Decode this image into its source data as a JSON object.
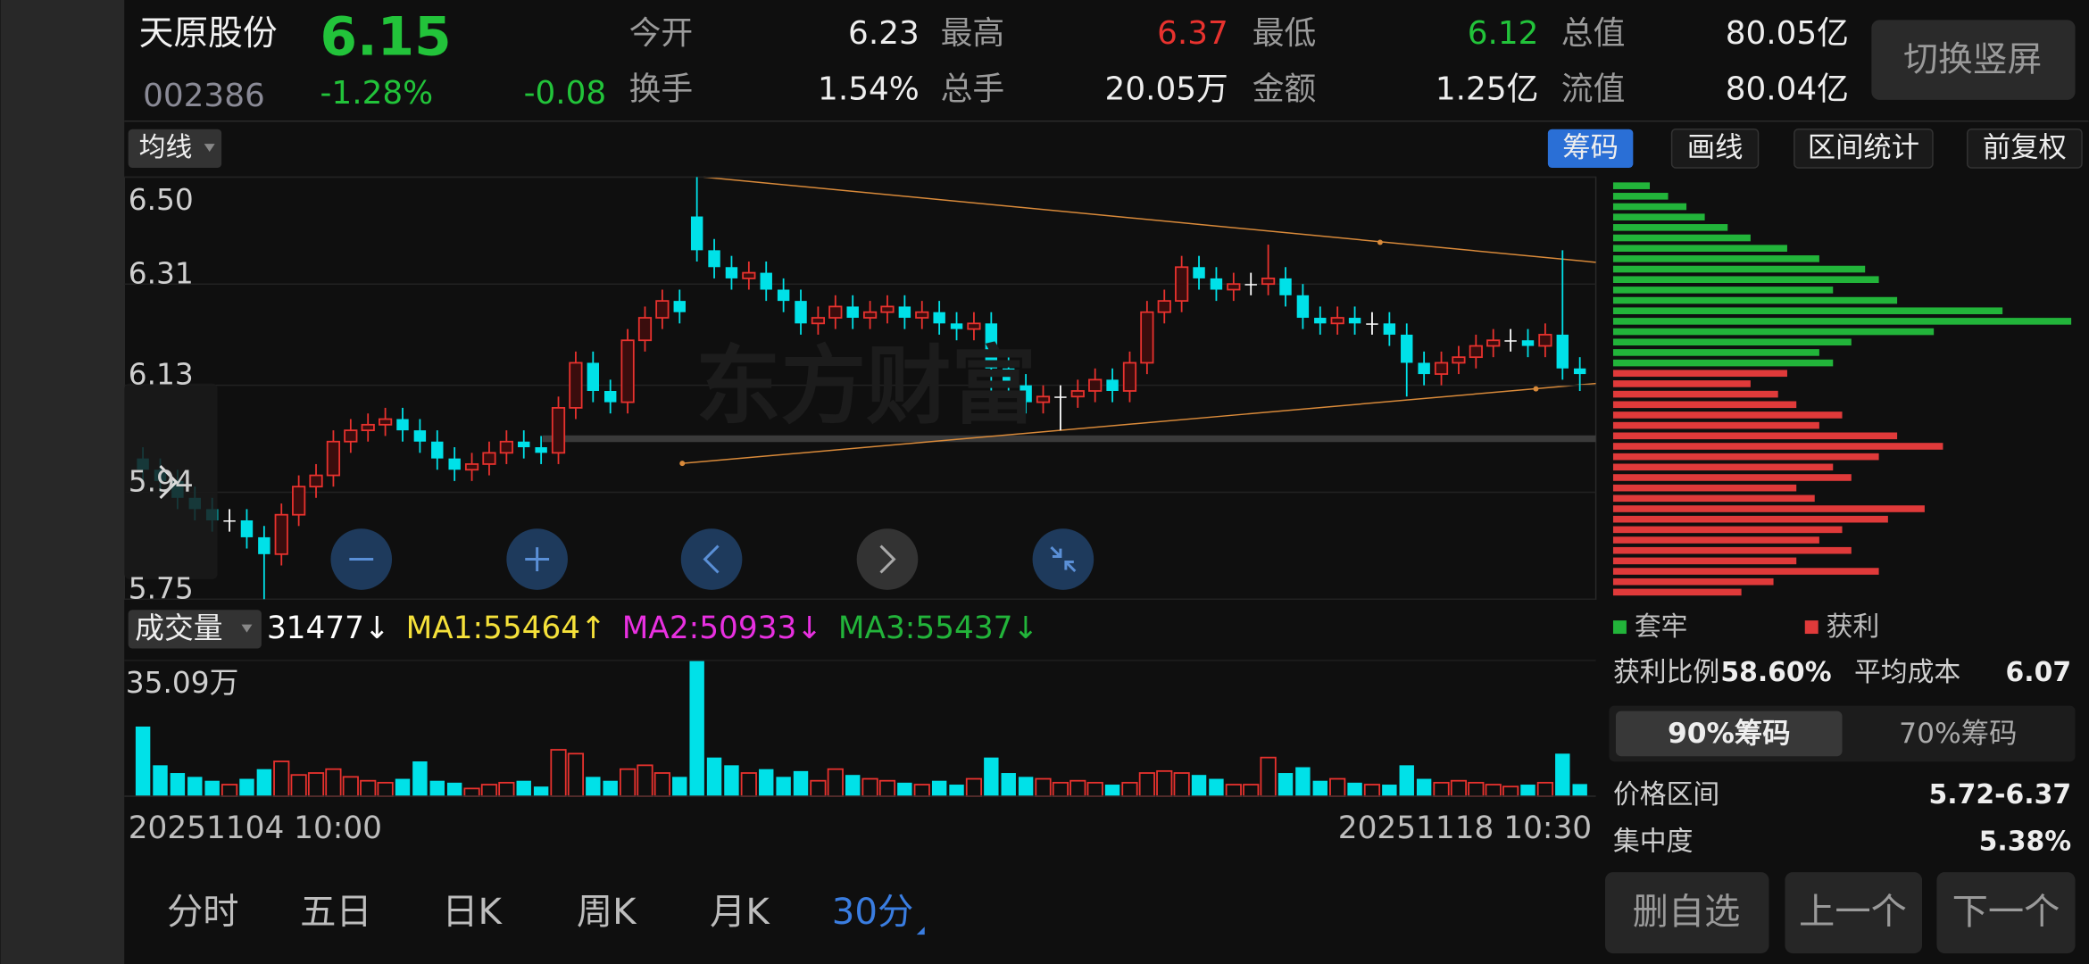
{
  "header": {
    "name": "天原股份",
    "price": "6.15",
    "code": "002386",
    "change_pct": "-1.28%",
    "change": "-0.08",
    "stats": [
      {
        "label": "今开",
        "value": "6.23",
        "color": "#eeeeee"
      },
      {
        "label": "最高",
        "value": "6.37",
        "color": "#e8322e"
      },
      {
        "label": "最低",
        "value": "6.12",
        "color": "#22c33a"
      },
      {
        "label": "总值",
        "value": "80.05亿",
        "color": "#eeeeee"
      },
      {
        "label": "换手",
        "value": "1.54%",
        "color": "#eeeeee"
      },
      {
        "label": "总手",
        "value": "20.05万",
        "color": "#eeeeee"
      },
      {
        "label": "金额",
        "value": "1.25亿",
        "color": "#eeeeee"
      },
      {
        "label": "流值",
        "value": "80.04亿",
        "color": "#eeeeee"
      }
    ],
    "toggle_button": "切换竖屏"
  },
  "ma_button": "均线",
  "tools": [
    "筹码",
    "画线",
    "区间统计",
    "前复权"
  ],
  "watermark": "东方财富",
  "chart_data": {
    "type": "candlestick",
    "up_color": "#e8322e",
    "down_color": "#00e1e8",
    "ylim": [
      5.75,
      6.5
    ],
    "yticks": [
      {
        "value": 6.5,
        "label": "6.50"
      },
      6.31,
      6.13,
      5.94,
      5.75
    ],
    "open": [
      6.0,
      5.98,
      5.96,
      5.93,
      5.91,
      5.89,
      5.89,
      5.86,
      5.83,
      5.9,
      5.95,
      5.97,
      6.03,
      6.05,
      6.06,
      6.07,
      6.05,
      6.03,
      6.0,
      5.98,
      5.99,
      6.01,
      6.03,
      6.02,
      6.01,
      6.09,
      6.17,
      6.12,
      6.1,
      6.21,
      6.25,
      6.28,
      6.43,
      6.37,
      6.34,
      6.32,
      6.33,
      6.3,
      6.28,
      6.24,
      6.25,
      6.27,
      6.25,
      6.26,
      6.27,
      6.25,
      6.26,
      6.24,
      6.23,
      6.24,
      6.16,
      6.13,
      6.1,
      6.11,
      6.11,
      6.12,
      6.14,
      6.12,
      6.17,
      6.26,
      6.28,
      6.34,
      6.32,
      6.3,
      6.31,
      6.31,
      6.32,
      6.29,
      6.25,
      6.24,
      6.25,
      6.24,
      6.24,
      6.22,
      6.17,
      6.15,
      6.17,
      6.18,
      6.2,
      6.21,
      6.21,
      6.2,
      6.22,
      6.16
    ],
    "high": [
      6.02,
      6.0,
      5.98,
      5.95,
      5.93,
      5.91,
      5.91,
      5.88,
      5.92,
      5.97,
      5.99,
      6.05,
      6.07,
      6.08,
      6.09,
      6.09,
      6.07,
      6.05,
      6.02,
      6.01,
      6.03,
      6.05,
      6.05,
      6.04,
      6.11,
      6.19,
      6.19,
      6.14,
      6.23,
      6.27,
      6.3,
      6.3,
      6.5,
      6.39,
      6.36,
      6.35,
      6.35,
      6.32,
      6.3,
      6.27,
      6.29,
      6.29,
      6.28,
      6.29,
      6.29,
      6.28,
      6.28,
      6.26,
      6.26,
      6.26,
      6.18,
      6.15,
      6.13,
      6.13,
      6.14,
      6.16,
      6.16,
      6.19,
      6.28,
      6.3,
      6.36,
      6.36,
      6.34,
      6.33,
      6.33,
      6.38,
      6.34,
      6.31,
      6.27,
      6.27,
      6.27,
      6.26,
      6.26,
      6.24,
      6.19,
      6.19,
      6.2,
      6.22,
      6.23,
      6.23,
      6.23,
      6.24,
      6.37,
      6.18
    ],
    "low": [
      5.96,
      5.94,
      5.91,
      5.89,
      5.87,
      5.87,
      5.84,
      5.75,
      5.81,
      5.88,
      5.93,
      5.95,
      6.01,
      6.03,
      6.04,
      6.03,
      6.01,
      5.98,
      5.96,
      5.96,
      5.97,
      5.99,
      6.0,
      5.99,
      5.99,
      6.07,
      6.1,
      6.08,
      6.08,
      6.19,
      6.23,
      6.24,
      6.35,
      6.32,
      6.3,
      6.3,
      6.28,
      6.26,
      6.22,
      6.22,
      6.23,
      6.23,
      6.23,
      6.24,
      6.23,
      6.23,
      6.22,
      6.21,
      6.21,
      6.07,
      6.11,
      6.08,
      6.08,
      6.05,
      6.09,
      6.1,
      6.1,
      6.1,
      6.15,
      6.24,
      6.26,
      6.3,
      6.28,
      6.28,
      6.29,
      6.29,
      6.27,
      6.23,
      6.22,
      6.22,
      6.22,
      6.22,
      6.2,
      6.11,
      6.13,
      6.13,
      6.15,
      6.16,
      6.18,
      6.19,
      6.18,
      6.18,
      6.14,
      6.12
    ],
    "close": [
      5.98,
      5.96,
      5.93,
      5.91,
      5.89,
      5.89,
      5.86,
      5.83,
      5.9,
      5.95,
      5.97,
      6.03,
      6.05,
      6.06,
      6.07,
      6.05,
      6.03,
      6.0,
      5.98,
      5.99,
      6.01,
      6.03,
      6.02,
      6.01,
      6.09,
      6.17,
      6.12,
      6.1,
      6.21,
      6.25,
      6.28,
      6.26,
      6.37,
      6.34,
      6.32,
      6.33,
      6.3,
      6.28,
      6.24,
      6.25,
      6.27,
      6.25,
      6.26,
      6.27,
      6.25,
      6.26,
      6.24,
      6.23,
      6.24,
      6.16,
      6.13,
      6.1,
      6.11,
      6.11,
      6.12,
      6.14,
      6.12,
      6.17,
      6.26,
      6.28,
      6.34,
      6.32,
      6.3,
      6.31,
      6.31,
      6.32,
      6.29,
      6.25,
      6.24,
      6.25,
      6.24,
      6.24,
      6.22,
      6.17,
      6.15,
      6.17,
      6.18,
      6.2,
      6.21,
      6.21,
      6.2,
      6.22,
      6.16,
      6.15
    ],
    "volume": [
      180000,
      80000,
      60000,
      50000,
      40000,
      30000,
      45000,
      70000,
      90000,
      55000,
      60000,
      70000,
      50000,
      40000,
      35000,
      45000,
      90000,
      40000,
      35000,
      20000,
      30000,
      35000,
      40000,
      25000,
      120000,
      110000,
      50000,
      40000,
      70000,
      80000,
      60000,
      50000,
      350900,
      100000,
      80000,
      60000,
      70000,
      50000,
      65000,
      40000,
      70000,
      55000,
      45000,
      40000,
      35000,
      30000,
      40000,
      30000,
      45000,
      100000,
      60000,
      50000,
      45000,
      35000,
      40000,
      35000,
      30000,
      35000,
      60000,
      65000,
      60000,
      55000,
      45000,
      30000,
      30000,
      100000,
      60000,
      75000,
      40000,
      45000,
      35000,
      30000,
      30000,
      80000,
      45000,
      35000,
      40000,
      35000,
      30000,
      25000,
      30000,
      35000,
      110000,
      31477
    ],
    "volume_ylim": [
      0,
      350900
    ],
    "volume_ticks": [
      {
        "value": 350900,
        "label": "35.09万"
      }
    ],
    "volume_title": "成交量",
    "volume_stats": [
      {
        "text": "31477↓",
        "color": "#ffffff"
      },
      {
        "text": "MA1:55464↑",
        "color": "#f5e13a"
      },
      {
        "text": "MA2:50933↓",
        "color": "#e830e0"
      },
      {
        "text": "MA3:55437↓",
        "color": "#22b43a"
      }
    ],
    "x_start": "20251104 10:00",
    "x_end": "20251118 10:30"
  },
  "chips": {
    "series": [
      {
        "name": "套牢",
        "color": "#22b43a",
        "values": [
          8,
          12,
          16,
          20,
          25,
          30,
          38,
          45,
          55,
          58,
          48,
          62,
          85,
          100,
          70,
          52,
          45,
          48
        ]
      },
      {
        "name": "获利",
        "color": "#e03a3a",
        "values": [
          38,
          30,
          36,
          40,
          50,
          45,
          62,
          72,
          58,
          48,
          52,
          40,
          44,
          68,
          60,
          50,
          45,
          52,
          40,
          58,
          35,
          28
        ]
      }
    ],
    "stats": [
      {
        "label": "获利比例",
        "value": "58.60%"
      },
      {
        "label": "平均成本",
        "value": "6.07"
      }
    ],
    "tabs": [
      "90%筹码",
      "70%筹码"
    ],
    "details": [
      {
        "label": "价格区间",
        "value": "5.72-6.37"
      },
      {
        "label": "集中度",
        "value": "5.38%"
      }
    ]
  },
  "periods": [
    "分时",
    "五日",
    "日K",
    "周K",
    "月K",
    "30分"
  ],
  "actions": [
    "删自选",
    "上一个",
    "下一个"
  ]
}
